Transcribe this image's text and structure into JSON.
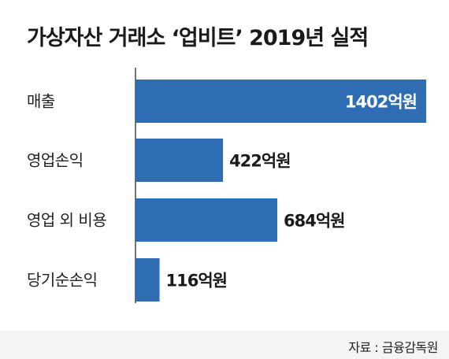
{
  "chart_data": {
    "type": "bar",
    "orientation": "horizontal",
    "title": "가상자산 거래소 ‘업비트’ 2019년 실적",
    "categories": [
      "매출",
      "영업손익",
      "영업 외 비용",
      "당기순손익"
    ],
    "values": [
      1402,
      422,
      684,
      116
    ],
    "value_labels": [
      "1402억원",
      "422억원",
      "684억원",
      "116억원"
    ],
    "unit": "억원",
    "xlim": [
      0,
      1402
    ],
    "grid": false,
    "bar_color": "#2e6db4",
    "label_color_inside": "#ffffff",
    "label_color_outside": "#1a1a1a",
    "axis_color": "#444444"
  },
  "source": "자료 : 금융감독원"
}
